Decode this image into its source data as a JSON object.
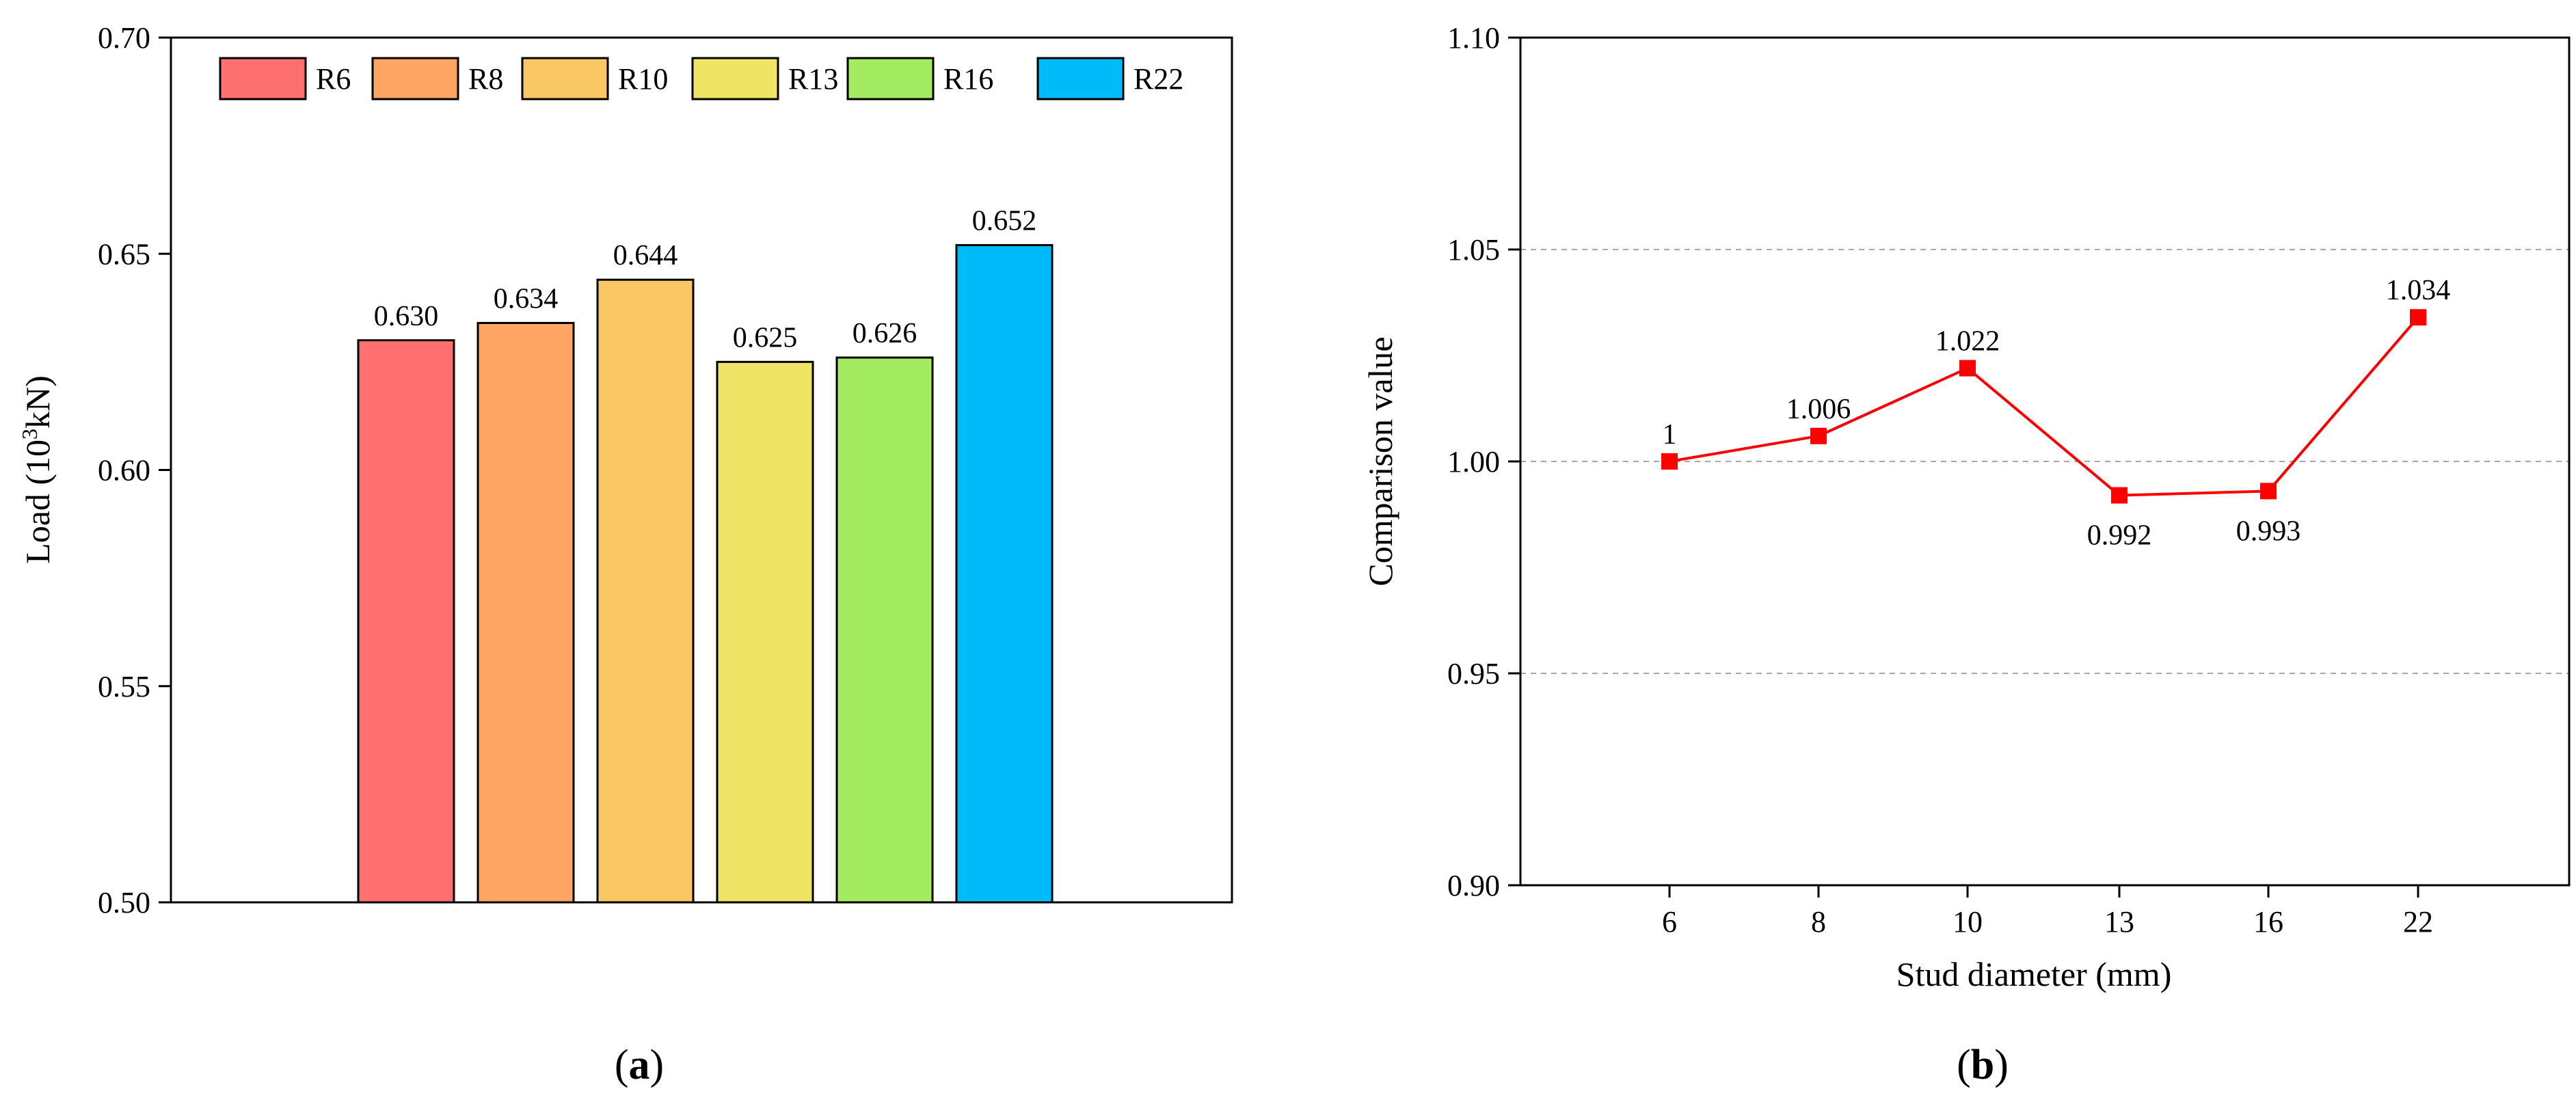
{
  "chart_data": [
    {
      "type": "bar",
      "panel_label": "(a)",
      "panel_letter": "a",
      "categories": [
        "R6",
        "R8",
        "R10",
        "R13",
        "R16",
        "R22"
      ],
      "values": [
        0.63,
        0.634,
        0.644,
        0.625,
        0.626,
        0.652
      ],
      "value_labels": [
        "0.630",
        "0.634",
        "0.644",
        "0.625",
        "0.626",
        "0.652"
      ],
      "colors": [
        "#FF7070",
        "#FFA563",
        "#FAC765",
        "#EFE466",
        "#A3EC61",
        "#00BBFA"
      ],
      "ylabel_prefix": "Load (10",
      "ylabel_sup": "3",
      "ylabel_suffix": "kN)",
      "ylim": [
        0.5,
        0.7
      ],
      "yticks": [
        "0.50",
        "0.55",
        "0.60",
        "0.65",
        "0.70"
      ],
      "legend_position": "top",
      "grid": false
    },
    {
      "type": "line",
      "panel_label": "(b)",
      "panel_letter": "b",
      "categories": [
        "6",
        "8",
        "10",
        "13",
        "16",
        "22"
      ],
      "values": [
        1.0,
        1.006,
        1.022,
        0.992,
        0.993,
        1.034
      ],
      "value_labels": [
        "1",
        "1.006",
        "1.022",
        "0.992",
        "0.993",
        "1.034"
      ],
      "label_side": [
        "above",
        "above",
        "above",
        "below",
        "below",
        "above"
      ],
      "color": "#FF0000",
      "xlabel": "Stud diameter (mm)",
      "ylabel": "Comparison value",
      "ylim": [
        0.9,
        1.1
      ],
      "yticks": [
        "0.90",
        "0.95",
        "1.00",
        "1.05",
        "1.10"
      ],
      "grid": true
    }
  ]
}
